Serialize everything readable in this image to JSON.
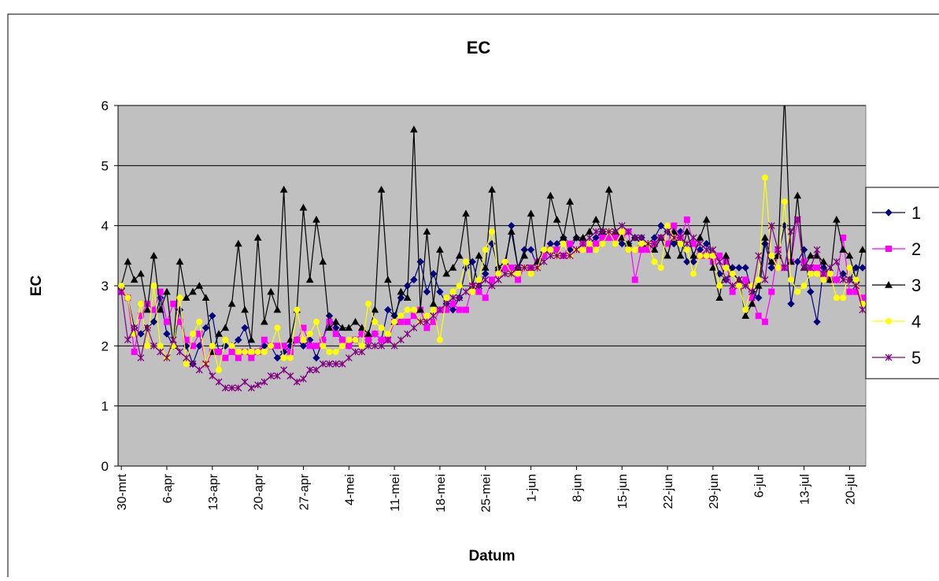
{
  "chart_data": {
    "type": "line",
    "title": "EC",
    "x_label": "Datum",
    "y_label": "EC",
    "categories": [
      "30-mrt",
      null,
      null,
      null,
      null,
      null,
      null,
      "6-apr",
      null,
      null,
      null,
      null,
      null,
      null,
      "13-apr",
      null,
      null,
      null,
      null,
      null,
      null,
      "20-apr",
      null,
      null,
      null,
      null,
      null,
      null,
      "27-apr",
      null,
      null,
      null,
      null,
      null,
      null,
      "4-mei",
      null,
      null,
      null,
      null,
      null,
      null,
      "11-mei",
      null,
      null,
      null,
      null,
      null,
      null,
      "18-mei",
      null,
      null,
      null,
      null,
      null,
      null,
      "25-mei",
      null,
      null,
      null,
      null,
      null,
      null,
      "1-jun",
      null,
      null,
      null,
      null,
      null,
      null,
      "8-jun",
      null,
      null,
      null,
      null,
      null,
      null,
      "15-jun",
      null,
      null,
      null,
      null,
      null,
      null,
      "22-jun",
      null,
      null,
      null,
      null,
      null,
      null,
      "29-jun",
      null,
      null,
      null,
      null,
      null,
      null,
      "6-jul",
      null,
      null,
      null,
      null,
      null,
      null,
      "13-jul",
      null,
      null,
      null,
      null,
      null,
      null,
      "20-jul",
      null,
      null
    ],
    "ylim": [
      0,
      6
    ],
    "yticks": [
      0,
      1,
      2,
      3,
      4,
      5,
      6
    ],
    "grid": true,
    "legend": "right",
    "series": [
      {
        "name": "1",
        "color": "#000080",
        "marker": "diamond",
        "values": [
          3.0,
          2.8,
          2.3,
          2.2,
          2.3,
          2.4,
          2.8,
          2.2,
          2.0,
          2.6,
          2.0,
          1.7,
          2.0,
          2.3,
          2.5,
          1.9,
          2.0,
          2.0,
          2.1,
          2.3,
          1.9,
          1.9,
          2.0,
          2.0,
          1.8,
          1.9,
          2.0,
          2.1,
          2.0,
          2.1,
          1.8,
          2.1,
          2.5,
          2.3,
          2.1,
          2.0,
          2.1,
          2.2,
          2.1,
          2.2,
          2.1,
          2.6,
          2.5,
          2.8,
          3.0,
          3.1,
          3.4,
          2.9,
          3.2,
          2.9,
          2.7,
          2.6,
          2.8,
          3.3,
          3.4,
          3.0,
          3.2,
          3.7,
          3.3,
          3.3,
          4.0,
          3.3,
          3.6,
          3.6,
          3.3,
          3.5,
          3.7,
          3.7,
          3.8,
          3.6,
          3.8,
          3.7,
          3.7,
          3.8,
          3.9,
          3.9,
          3.8,
          3.7,
          3.7,
          3.8,
          3.8,
          3.7,
          3.8,
          4.0,
          3.9,
          3.7,
          3.9,
          3.4,
          3.4,
          3.6,
          3.7,
          3.5,
          3.2,
          3.1,
          3.3,
          3.3,
          3.3,
          2.9,
          2.8,
          3.7,
          3.3,
          3.5,
          4.0,
          2.7,
          3.4,
          3.6,
          2.9,
          2.4,
          3.3,
          3.1,
          3.1,
          3.2,
          3.1,
          3.3,
          3.3
        ]
      },
      {
        "name": "2",
        "color": "#ff00ff",
        "marker": "square",
        "values": [
          2.9,
          2.8,
          1.9,
          2.5,
          2.7,
          2.6,
          2.9,
          2.4,
          2.7,
          2.4,
          2.1,
          2.0,
          2.2,
          1.7,
          1.9,
          1.9,
          1.8,
          1.9,
          1.8,
          1.9,
          1.8,
          1.9,
          2.1,
          2.0,
          2.0,
          2.0,
          1.9,
          2.1,
          2.3,
          2.0,
          2.0,
          2.1,
          2.4,
          2.2,
          2.1,
          2.0,
          2.1,
          2.2,
          2.1,
          2.2,
          2.1,
          2.1,
          2.4,
          2.4,
          2.4,
          2.5,
          2.6,
          2.3,
          2.4,
          2.6,
          2.6,
          2.7,
          2.6,
          2.6,
          3.0,
          2.9,
          2.8,
          3.1,
          3.2,
          3.3,
          3.3,
          3.1,
          3.3,
          3.3,
          3.4,
          3.5,
          3.6,
          3.6,
          3.5,
          3.7,
          3.6,
          3.7,
          3.6,
          3.7,
          3.8,
          3.8,
          3.8,
          3.8,
          3.9,
          3.1,
          3.6,
          3.6,
          3.7,
          3.8,
          3.7,
          4.0,
          3.8,
          4.1,
          3.7,
          3.5,
          3.5,
          3.4,
          3.5,
          3.4,
          2.9,
          3.0,
          3.1,
          2.8,
          2.5,
          2.4,
          2.9,
          3.6,
          3.3,
          3.4,
          4.1,
          3.4,
          3.3,
          3.3,
          3.2,
          3.1,
          3.1,
          3.8,
          2.9,
          2.9,
          2.8
        ]
      },
      {
        "name": "3",
        "color": "#000000",
        "marker": "triangle",
        "values": [
          3.0,
          3.4,
          3.1,
          3.2,
          2.6,
          3.5,
          2.6,
          2.9,
          2.0,
          3.4,
          2.8,
          2.9,
          3.0,
          2.8,
          1.9,
          2.2,
          2.3,
          2.7,
          3.7,
          2.6,
          2.1,
          3.8,
          2.4,
          2.9,
          2.6,
          4.6,
          2.1,
          2.6,
          4.3,
          3.1,
          4.1,
          3.4,
          2.3,
          2.4,
          2.3,
          2.3,
          2.4,
          2.3,
          2.2,
          2.6,
          4.6,
          3.1,
          2.4,
          2.9,
          2.8,
          5.6,
          2.6,
          3.9,
          2.7,
          3.6,
          3.2,
          3.3,
          3.5,
          4.2,
          3.0,
          3.5,
          3.3,
          4.6,
          3.3,
          3.4,
          3.9,
          3.3,
          3.5,
          4.2,
          3.4,
          3.6,
          4.5,
          4.1,
          3.8,
          4.4,
          3.8,
          3.8,
          3.9,
          4.1,
          3.9,
          4.6,
          3.9,
          3.8,
          3.7,
          3.8,
          3.7,
          3.7,
          3.6,
          3.8,
          3.5,
          3.9,
          3.5,
          3.9,
          3.5,
          3.8,
          4.1,
          3.3,
          2.8,
          3.5,
          3.2,
          3.1,
          2.5,
          2.7,
          3.0,
          3.8,
          3.4,
          3.5,
          6.2,
          3.4,
          4.5,
          3.3,
          3.5,
          3.5,
          3.4,
          3.1,
          4.1,
          3.6,
          3.5,
          3.1,
          3.6
        ]
      },
      {
        "name": "4",
        "color": "#ffff00",
        "marker": "circle",
        "values": [
          3.0,
          2.8,
          2.2,
          2.7,
          2.0,
          3.0,
          2.0,
          1.8,
          2.0,
          2.8,
          1.7,
          2.2,
          2.4,
          1.7,
          2.0,
          1.6,
          2.1,
          2.0,
          1.9,
          1.9,
          1.9,
          1.9,
          1.9,
          2.0,
          2.3,
          1.8,
          1.8,
          2.6,
          2.1,
          2.2,
          2.4,
          2.0,
          1.9,
          1.9,
          2.0,
          2.1,
          2.1,
          2.0,
          2.7,
          2.4,
          2.3,
          2.2,
          2.4,
          2.5,
          2.6,
          2.6,
          2.4,
          2.5,
          2.6,
          2.1,
          2.8,
          2.9,
          3.0,
          3.4,
          2.9,
          3.1,
          3.6,
          3.9,
          3.2,
          3.4,
          3.2,
          3.2,
          3.3,
          3.2,
          3.3,
          3.6,
          3.6,
          3.5,
          3.7,
          3.5,
          3.6,
          3.6,
          3.7,
          3.6,
          3.7,
          3.9,
          3.7,
          3.9,
          3.6,
          3.6,
          3.7,
          3.7,
          3.4,
          3.3,
          4.0,
          3.8,
          3.7,
          3.6,
          3.2,
          3.5,
          3.5,
          3.5,
          3.0,
          3.3,
          3.2,
          3.0,
          2.6,
          3.0,
          3.1,
          4.8,
          3.5,
          3.3,
          4.4,
          3.1,
          2.9,
          3.0,
          3.2,
          3.2,
          3.1,
          3.2,
          2.8,
          2.8,
          3.3,
          3.1,
          2.7
        ]
      },
      {
        "name": "5",
        "color": "#800080",
        "marker": "star",
        "values": [
          2.9,
          2.1,
          2.3,
          1.8,
          2.3,
          2.0,
          1.9,
          1.8,
          2.1,
          1.9,
          1.8,
          1.7,
          1.6,
          1.7,
          1.5,
          1.4,
          1.3,
          1.3,
          1.3,
          1.4,
          1.3,
          1.35,
          1.4,
          1.5,
          1.5,
          1.6,
          1.5,
          1.4,
          1.45,
          1.6,
          1.6,
          1.7,
          1.7,
          1.7,
          1.7,
          1.8,
          1.9,
          1.9,
          2.0,
          2.0,
          2.0,
          2.1,
          2.0,
          2.1,
          2.2,
          2.3,
          2.4,
          2.4,
          2.5,
          2.6,
          2.7,
          2.8,
          2.8,
          2.9,
          3.0,
          3.0,
          3.1,
          3.0,
          3.1,
          3.2,
          3.2,
          3.3,
          3.3,
          3.3,
          3.3,
          3.4,
          3.5,
          3.5,
          3.5,
          3.5,
          3.6,
          3.7,
          3.8,
          3.9,
          3.9,
          3.9,
          3.9,
          4.0,
          3.9,
          3.8,
          3.8,
          3.7,
          3.7,
          3.8,
          3.9,
          3.8,
          3.8,
          3.7,
          3.8,
          3.7,
          3.6,
          3.6,
          3.4,
          3.1,
          3.0,
          3.1,
          3.0,
          2.9,
          3.5,
          3.1,
          4.0,
          3.6,
          3.3,
          3.9,
          4.1,
          3.3,
          3.3,
          3.6,
          3.2,
          3.3,
          3.4,
          3.1,
          3.1,
          3.0,
          2.6
        ]
      }
    ]
  }
}
